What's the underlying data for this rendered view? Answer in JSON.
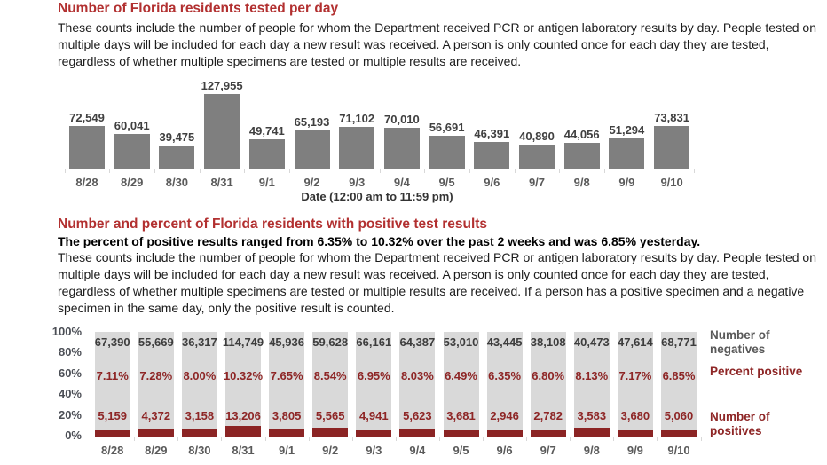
{
  "section1": {
    "title": "Number of Florida residents tested per day",
    "body": "These counts include the number of people for whom the Department received PCR or antigen laboratory results by day. People tested on multiple days will be included for each day a new result was received. A person is only counted once for each day they are tested, regardless of whether multiple specimens are tested or multiple results are received."
  },
  "section2": {
    "title": "Number and percent of Florida residents with positive test results",
    "highlight": "The percent of positive results ranged from 6.35% to 10.32% over the past 2 weeks and was 6.85% yesterday.",
    "body": "These counts include the number of people for whom the Department received PCR or antigen laboratory results by day. People tested on multiple days will be included for each day a new result was received. A person is only counted once for each day they are tested, regardless of whether multiple specimens are tested or multiple results are received. If a person has a positive specimen and a negative specimen in the same day, only the positive result is counted."
  },
  "colors": {
    "heading_red": "#b23030",
    "body_text": "#1c1c1c",
    "bar_gray": "#7f7f7f",
    "bar_light_gray": "#d9d9d9",
    "bar_dark_red": "#8b2424",
    "value_label_gray": "#404040",
    "axis_gray": "#d8d8d8",
    "tick_label_gray": "#5a5a5a"
  },
  "chart_data": [
    {
      "type": "bar",
      "title": "Number of Florida residents tested per day",
      "categories": [
        "8/28",
        "8/29",
        "8/30",
        "8/31",
        "9/1",
        "9/2",
        "9/3",
        "9/4",
        "9/5",
        "9/6",
        "9/7",
        "9/8",
        "9/9",
        "9/10"
      ],
      "values": [
        72549,
        60041,
        39475,
        127955,
        49741,
        65193,
        71102,
        70010,
        56691,
        46391,
        40890,
        44056,
        51294,
        73831
      ],
      "value_labels": [
        "72,549",
        "60,041",
        "39,475",
        "127,955",
        "49,741",
        "65,193",
        "71,102",
        "70,010",
        "56,691",
        "46,391",
        "40,890",
        "44,056",
        "51,294",
        "73,831"
      ],
      "xlabel": "Date (12:00 am to 11:59 pm)",
      "ylabel": "",
      "ylim": [
        0,
        127955
      ],
      "grid": false,
      "bar_color": "#7f7f7f"
    },
    {
      "type": "bar",
      "subtype": "stacked-100-percent",
      "title": "Number and percent of Florida residents with positive test results",
      "categories": [
        "8/28",
        "8/29",
        "8/30",
        "8/31",
        "9/1",
        "9/2",
        "9/3",
        "9/4",
        "9/5",
        "9/6",
        "9/7",
        "9/8",
        "9/9",
        "9/10"
      ],
      "yticks": [
        "100%",
        "80%",
        "60%",
        "40%",
        "20%",
        "0%"
      ],
      "ylim": [
        0,
        100
      ],
      "grid": false,
      "legend_position": "right",
      "series": [
        {
          "name": "Number of negatives",
          "color": "#d9d9d9",
          "values": [
            67390,
            55669,
            36317,
            114749,
            45936,
            59628,
            66161,
            64387,
            53010,
            43445,
            38108,
            40473,
            47614,
            68771
          ],
          "labels": [
            "67,390",
            "55,669",
            "36,317",
            "114,749",
            "45,936",
            "59,628",
            "66,161",
            "64,387",
            "53,010",
            "43,445",
            "38,108",
            "40,473",
            "47,614",
            "68,771"
          ]
        },
        {
          "name": "Percent positive",
          "color": "#8e2626",
          "values": [
            7.11,
            7.28,
            8.0,
            10.32,
            7.65,
            8.54,
            6.95,
            8.03,
            6.49,
            6.35,
            6.8,
            8.13,
            7.17,
            6.85
          ],
          "labels": [
            "7.11%",
            "7.28%",
            "8.00%",
            "10.32%",
            "7.65%",
            "8.54%",
            "6.95%",
            "8.03%",
            "6.49%",
            "6.35%",
            "6.80%",
            "8.13%",
            "7.17%",
            "6.85%"
          ]
        },
        {
          "name": "Number of positives",
          "color": "#8b2424",
          "values": [
            5159,
            4372,
            3158,
            13206,
            3805,
            5565,
            4941,
            5623,
            3681,
            2946,
            2782,
            3583,
            3680,
            5060
          ],
          "labels": [
            "5,159",
            "4,372",
            "3,158",
            "13,206",
            "3,805",
            "5,565",
            "4,941",
            "5,623",
            "3,681",
            "2,946",
            "2,782",
            "3,583",
            "3,680",
            "5,060"
          ]
        }
      ],
      "legend": [
        {
          "label": "Number of negatives",
          "color": "#595959"
        },
        {
          "label": "Percent positive",
          "color": "#8e2626"
        },
        {
          "label": "Number of positives",
          "color": "#8e2626"
        }
      ]
    }
  ]
}
